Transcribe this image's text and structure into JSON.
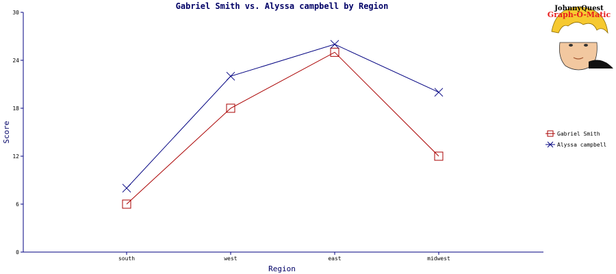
{
  "chart_data": {
    "type": "line",
    "title": "Gabriel Smith vs. Alyssa campbell  by Region",
    "xlabel": "Region",
    "ylabel": "Score",
    "categories": [
      "south",
      "west",
      "east",
      "midwest"
    ],
    "ylim": [
      0,
      30
    ],
    "yticks": [
      0,
      6,
      12,
      18,
      24,
      30
    ],
    "grid": false,
    "legend_position": "right",
    "series": [
      {
        "name": "Gabriel Smith",
        "values": [
          6,
          18,
          25,
          12
        ],
        "color": "#aa0000",
        "marker": "square"
      },
      {
        "name": "Alyssa campbell",
        "values": [
          8,
          22,
          26,
          20
        ],
        "color": "#000080",
        "marker": "x"
      }
    ]
  },
  "logo": {
    "line1": "JohnnyQuest",
    "line2": "Graph-O-Matic"
  },
  "colors": {
    "axis": "#000080",
    "title": "#000066"
  }
}
